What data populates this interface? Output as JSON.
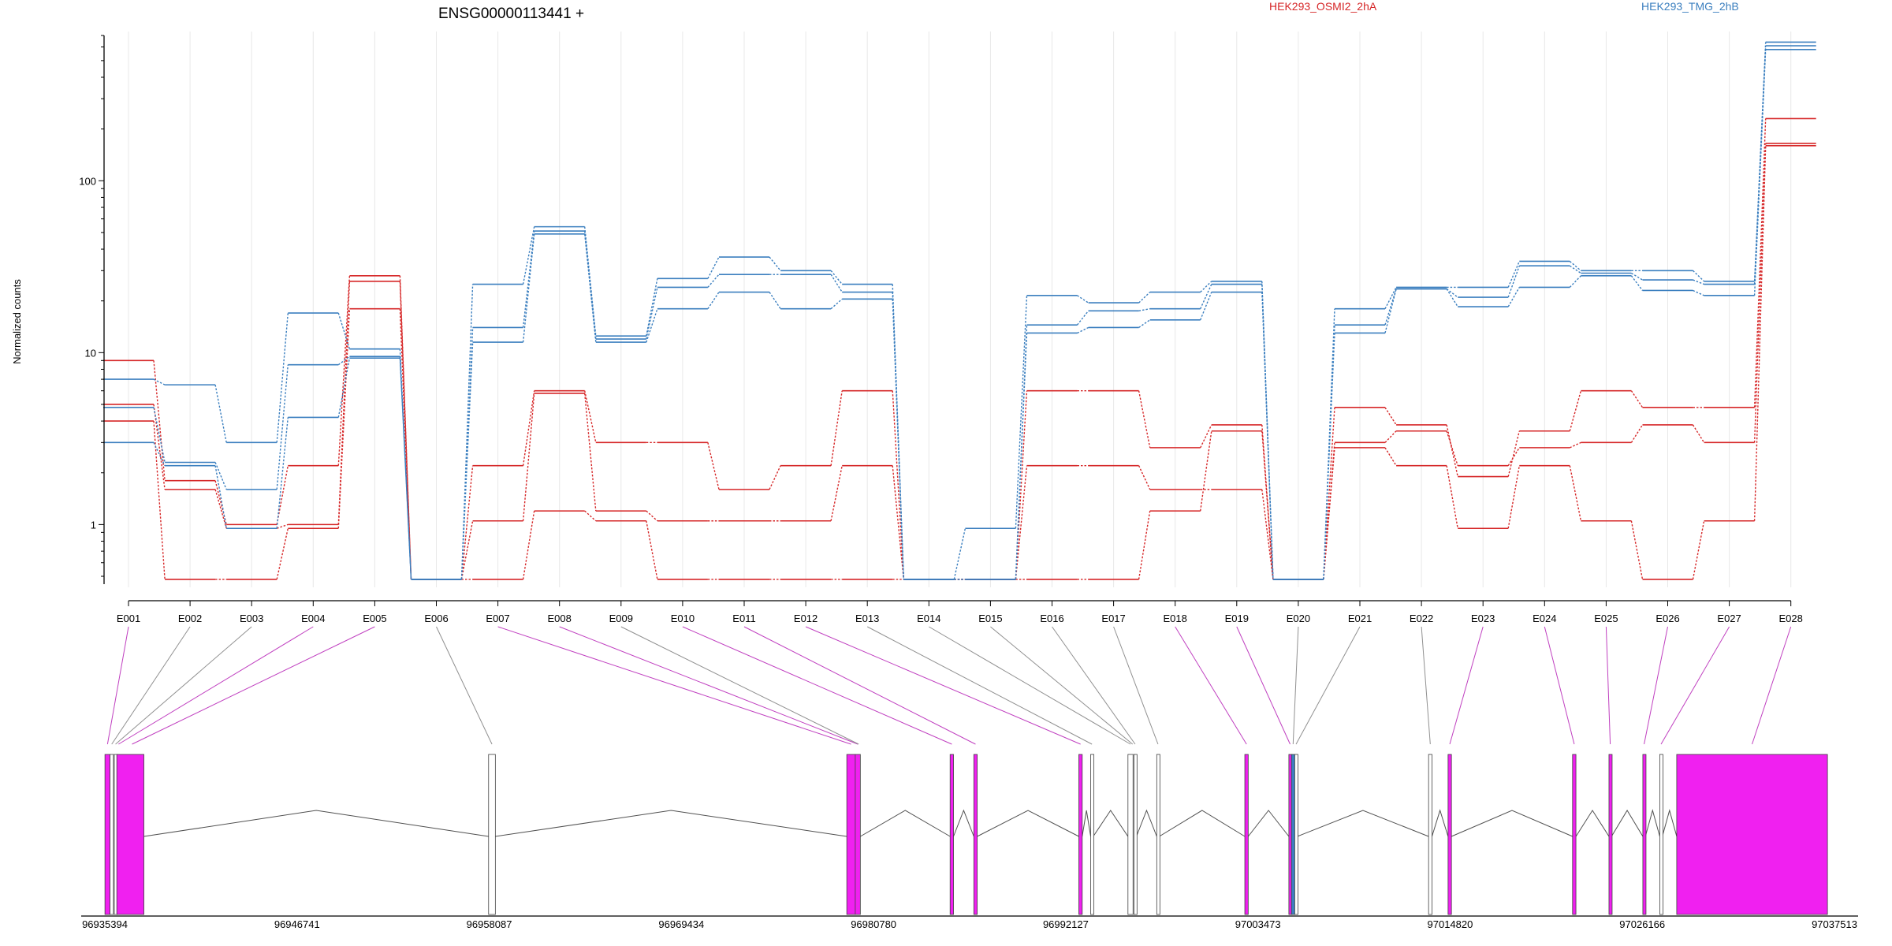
{
  "chart_data": {
    "type": "line",
    "title": "ENSG00000113441 +",
    "ylabel": "Normalized counts",
    "xlabel": "",
    "y_scale": "log",
    "ylim": [
      0.45,
      700
    ],
    "y_ticks": [
      1,
      10,
      100
    ],
    "y_tick_labels": [
      "1",
      "10",
      "100"
    ],
    "categories": [
      "E001",
      "E002",
      "E003",
      "E004",
      "E005",
      "E006",
      "E007",
      "E008",
      "E009",
      "E010",
      "E011",
      "E012",
      "E013",
      "E014",
      "E015",
      "E016",
      "E017",
      "E018",
      "E019",
      "E020",
      "E021",
      "E022",
      "E023",
      "E024",
      "E025",
      "E026",
      "E027",
      "E028"
    ],
    "legend": [
      {
        "name": "HEK293_OSMI2_2hA",
        "color": "#d62728"
      },
      {
        "name": "HEK293_TMG_2hB",
        "color": "#3b7fbf"
      }
    ],
    "series": [
      {
        "group": "red",
        "values": [
          9.0,
          1.8,
          1.0,
          2.2,
          28,
          0.48,
          2.2,
          6.0,
          3.0,
          3.0,
          1.6,
          2.2,
          6.0,
          0.48,
          0.48,
          6.0,
          6.0,
          2.8,
          3.8,
          0.48,
          4.8,
          3.8,
          1.9,
          3.5,
          6.0,
          4.8,
          4.8,
          230
        ]
      },
      {
        "group": "red",
        "values": [
          5.0,
          1.6,
          0.95,
          1.0,
          26,
          0.48,
          1.05,
          5.8,
          1.2,
          1.05,
          1.05,
          1.05,
          2.2,
          0.48,
          0.48,
          2.2,
          2.2,
          1.6,
          1.6,
          0.48,
          3.0,
          3.5,
          2.2,
          2.8,
          3.0,
          3.8,
          3.0,
          165
        ]
      },
      {
        "group": "red",
        "values": [
          4.0,
          0.48,
          0.48,
          0.95,
          18,
          0.48,
          0.48,
          1.2,
          1.05,
          0.48,
          0.48,
          0.48,
          0.48,
          0.48,
          0.48,
          0.48,
          0.48,
          1.2,
          3.5,
          0.48,
          2.8,
          2.2,
          0.95,
          2.2,
          1.05,
          0.48,
          1.05,
          160
        ]
      },
      {
        "group": "blue",
        "values": [
          7.0,
          6.5,
          3.0,
          17,
          10.5,
          0.48,
          25,
          54,
          12.5,
          27,
          36,
          30,
          25,
          0.48,
          0.95,
          21.5,
          19.5,
          22.5,
          26,
          0.48,
          18,
          24,
          24,
          34,
          30,
          30,
          26,
          640
        ]
      },
      {
        "group": "blue",
        "values": [
          4.8,
          2.3,
          1.6,
          8.5,
          9.5,
          0.48,
          14,
          51,
          12,
          24,
          28.5,
          28.5,
          22.5,
          0.48,
          0.48,
          14.5,
          17.5,
          18,
          25,
          0.48,
          14.5,
          23.5,
          21,
          32,
          29,
          26.5,
          25,
          610
        ]
      },
      {
        "group": "blue",
        "values": [
          3.0,
          2.2,
          0.95,
          4.2,
          9.3,
          0.48,
          11.5,
          49,
          11.5,
          18,
          22.5,
          18,
          20.5,
          0.48,
          0.48,
          13,
          14,
          15.5,
          22.5,
          0.48,
          13,
          23.5,
          18.5,
          24,
          28,
          23,
          21.5,
          580
        ]
      }
    ],
    "grid": true,
    "gene_model": {
      "coordinate_labels": [
        "96935394",
        "96946741",
        "96958087",
        "96969434",
        "96980780",
        "96992127",
        "97003473",
        "97014820",
        "97026166",
        "97037513"
      ],
      "start": 96935394,
      "end": 97037513,
      "exons": [
        {
          "start": 96935400,
          "end": 96935700,
          "color": "#f020f0"
        },
        {
          "start": 96935700,
          "end": 96935900,
          "color": "#ffffff"
        },
        {
          "start": 96935950,
          "end": 96936100,
          "color": "#ffffff"
        },
        {
          "start": 96936100,
          "end": 96937700,
          "color": "#f020f0"
        },
        {
          "start": 96958050,
          "end": 96958450,
          "color": "#ffffff"
        },
        {
          "start": 96979200,
          "end": 96979700,
          "color": "#f020f0"
        },
        {
          "start": 96979700,
          "end": 96980000,
          "color": "#f020f0"
        },
        {
          "start": 96985300,
          "end": 96985500,
          "color": "#f020f0"
        },
        {
          "start": 96986700,
          "end": 96986900,
          "color": "#f020f0"
        },
        {
          "start": 96992900,
          "end": 96993100,
          "color": "#f020f0"
        },
        {
          "start": 96993600,
          "end": 96993750,
          "color": "#ffffff"
        },
        {
          "start": 96995800,
          "end": 96996100,
          "color": "#ffffff"
        },
        {
          "start": 96996150,
          "end": 96996300,
          "color": "#ffffff"
        },
        {
          "start": 96997500,
          "end": 96997650,
          "color": "#ffffff"
        },
        {
          "start": 97002700,
          "end": 97002900,
          "color": "#f020f0"
        },
        {
          "start": 97005300,
          "end": 97005450,
          "color": "#f020f0"
        },
        {
          "start": 97005450,
          "end": 97005650,
          "color": "#3b7fbf"
        },
        {
          "start": 97005650,
          "end": 97005800,
          "color": "#ffffff"
        },
        {
          "start": 97013550,
          "end": 97013750,
          "color": "#ffffff"
        },
        {
          "start": 97014700,
          "end": 97014900,
          "color": "#f020f0"
        },
        {
          "start": 97022050,
          "end": 97022250,
          "color": "#f020f0"
        },
        {
          "start": 97024200,
          "end": 97024350,
          "color": "#f020f0"
        },
        {
          "start": 97026200,
          "end": 97026350,
          "color": "#f020f0"
        },
        {
          "start": 97027200,
          "end": 97027350,
          "color": "#ffffff"
        },
        {
          "start": 97028200,
          "end": 97037100,
          "color": "#f020f0"
        }
      ],
      "feature_links": [
        {
          "feature": "E001",
          "start": 96935400,
          "end": 96935700,
          "color": "#c040c0"
        },
        {
          "feature": "E002",
          "start": 96935700,
          "end": 96935900,
          "color": "#909090"
        },
        {
          "feature": "E003",
          "start": 96935950,
          "end": 96936100,
          "color": "#909090"
        },
        {
          "feature": "E004",
          "start": 96936100,
          "end": 96936300,
          "color": "#c040c0"
        },
        {
          "feature": "E005",
          "start": 96936300,
          "end": 96937700,
          "color": "#c040c0"
        },
        {
          "feature": "E006",
          "start": 96958050,
          "end": 96958450,
          "color": "#909090"
        },
        {
          "feature": "E007",
          "start": 96979200,
          "end": 96979700,
          "color": "#c040c0"
        },
        {
          "feature": "E008",
          "start": 96979700,
          "end": 96980000,
          "color": "#c040c0"
        },
        {
          "feature": "E009",
          "start": 96979800,
          "end": 96980000,
          "color": "#909090"
        },
        {
          "feature": "E010",
          "start": 96985300,
          "end": 96985500,
          "color": "#c040c0"
        },
        {
          "feature": "E011",
          "start": 96986700,
          "end": 96986900,
          "color": "#c040c0"
        },
        {
          "feature": "E012",
          "start": 96992900,
          "end": 96993100,
          "color": "#c040c0"
        },
        {
          "feature": "E013",
          "start": 96993600,
          "end": 96993750,
          "color": "#909090"
        },
        {
          "feature": "E014",
          "start": 96995800,
          "end": 96996100,
          "color": "#909090"
        },
        {
          "feature": "E015",
          "start": 96996000,
          "end": 96996150,
          "color": "#909090"
        },
        {
          "feature": "E016",
          "start": 96996150,
          "end": 96996300,
          "color": "#909090"
        },
        {
          "feature": "E017",
          "start": 96997500,
          "end": 96997650,
          "color": "#909090"
        },
        {
          "feature": "E018",
          "start": 97002700,
          "end": 97002900,
          "color": "#c040c0"
        },
        {
          "feature": "E019",
          "start": 97005300,
          "end": 97005450,
          "color": "#c040c0"
        },
        {
          "feature": "E020",
          "start": 97005450,
          "end": 97005650,
          "color": "#909090"
        },
        {
          "feature": "E021",
          "start": 97005650,
          "end": 97005800,
          "color": "#909090"
        },
        {
          "feature": "E022",
          "start": 97013550,
          "end": 97013750,
          "color": "#909090"
        },
        {
          "feature": "E023",
          "start": 97014700,
          "end": 97014900,
          "color": "#c040c0"
        },
        {
          "feature": "E024",
          "start": 97022050,
          "end": 97022250,
          "color": "#c040c0"
        },
        {
          "feature": "E025",
          "start": 97024200,
          "end": 97024350,
          "color": "#c040c0"
        },
        {
          "feature": "E026",
          "start": 97026200,
          "end": 97026350,
          "color": "#c040c0"
        },
        {
          "feature": "E027",
          "start": 97027200,
          "end": 97027350,
          "color": "#c040c0"
        },
        {
          "feature": "E028",
          "start": 97028200,
          "end": 97037100,
          "color": "#c040c0"
        }
      ]
    }
  }
}
